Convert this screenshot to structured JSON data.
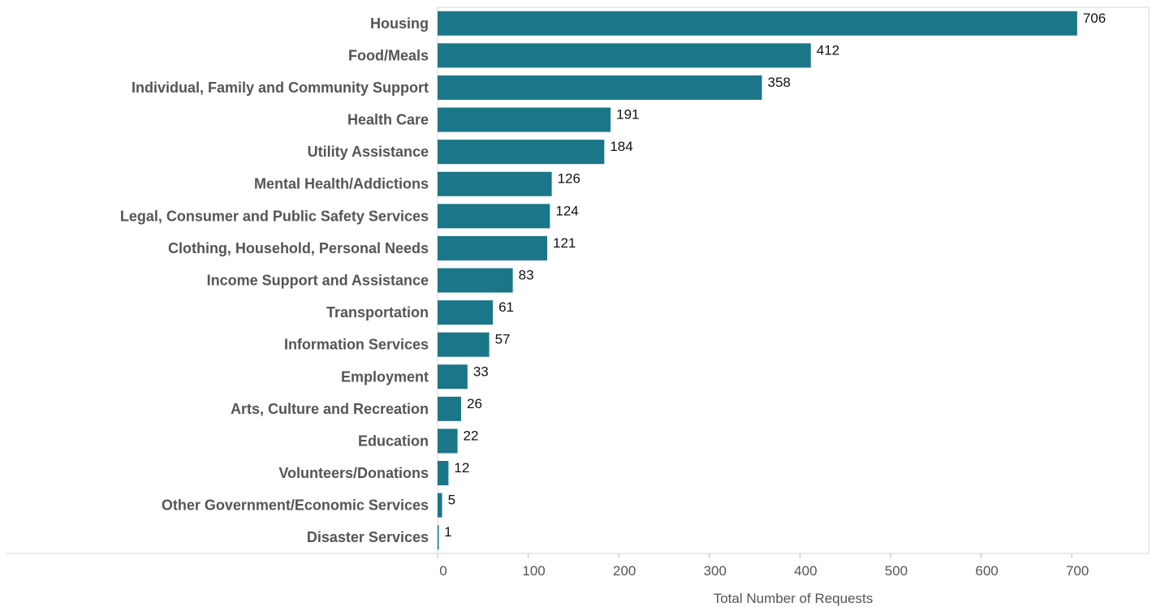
{
  "chart_data": {
    "type": "bar",
    "orientation": "horizontal",
    "categories": [
      "Housing",
      "Food/Meals",
      "Individual, Family and Community Support",
      "Health Care",
      "Utility Assistance",
      "Mental Health/Addictions",
      "Legal, Consumer and Public Safety Services",
      "Clothing, Household, Personal Needs",
      "Income Support and Assistance",
      "Transportation",
      "Information Services",
      "Employment",
      "Arts, Culture and Recreation",
      "Education",
      "Volunteers/Donations",
      "Other Government/Economic Services",
      "Disaster Services"
    ],
    "values": [
      706,
      412,
      358,
      191,
      184,
      126,
      124,
      121,
      83,
      61,
      57,
      33,
      26,
      22,
      12,
      5,
      1
    ],
    "value_labels": [
      "706",
      "412",
      "358",
      "191",
      "184",
      "126",
      "124",
      "121",
      "83",
      "61",
      "57",
      "33",
      "26",
      "22",
      "12",
      "5",
      "1"
    ],
    "xlabel": "Total Number of Requests",
    "xlim": [
      0,
      785
    ],
    "xticks": [
      0,
      100,
      200,
      300,
      400,
      500,
      600,
      700
    ],
    "xtick_labels": [
      "0",
      "100",
      "200",
      "300",
      "400",
      "500",
      "600",
      "700"
    ],
    "grid": false,
    "legend": "none",
    "bar_color": "#1b7689"
  }
}
